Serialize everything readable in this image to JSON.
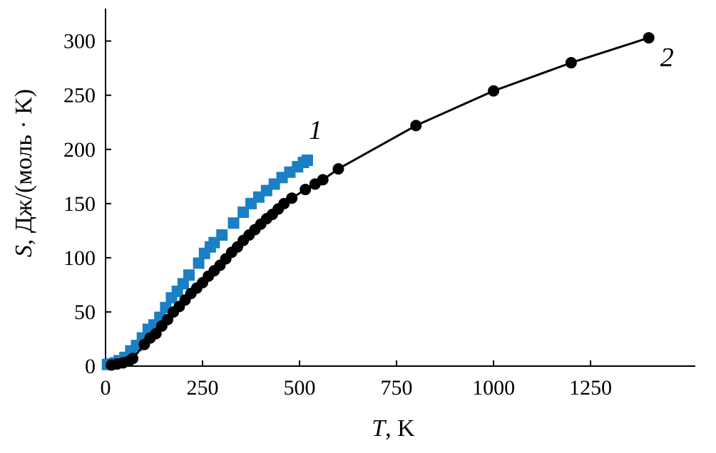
{
  "chart_data": {
    "type": "scatter",
    "title": "",
    "xlabel": {
      "symbol": "T",
      "rest": ", K"
    },
    "ylabel": {
      "symbol": "S",
      "rest": ", Дж/(моль · K)"
    },
    "xlim": [
      0,
      1520
    ],
    "ylim": [
      0,
      330
    ],
    "x_ticks": [
      0,
      250,
      500,
      750,
      1000,
      1250
    ],
    "y_ticks": [
      0,
      50,
      100,
      150,
      200,
      250,
      300
    ],
    "x_tick_labels": [
      "0",
      "250",
      "500",
      "750",
      "1000",
      "1250"
    ],
    "y_tick_labels": [
      "0",
      "50",
      "100",
      "150",
      "200",
      "250",
      "300"
    ],
    "grid": false,
    "legend": "none",
    "series": [
      {
        "label": "1",
        "marker": "square",
        "color": "#1a7fc4",
        "line": false,
        "x": [
          5,
          15,
          25,
          35,
          50,
          65,
          80,
          95,
          110,
          125,
          140,
          155,
          170,
          185,
          200,
          215,
          240,
          255,
          270,
          280,
          300,
          330,
          355,
          375,
          395,
          415,
          435,
          455,
          475,
          495,
          510,
          520
        ],
        "y": [
          1.5,
          2,
          3,
          5,
          8,
          14,
          19,
          26,
          34,
          38,
          45,
          54,
          63,
          69,
          76,
          84,
          95,
          104,
          110,
          114,
          121,
          132,
          142,
          150,
          156,
          162,
          168,
          174,
          179,
          184,
          188,
          190
        ]
      },
      {
        "label": "2",
        "marker": "circle",
        "color": "#000000",
        "line": true,
        "x": [
          15,
          30,
          45,
          60,
          70,
          100,
          115,
          130,
          145,
          160,
          175,
          190,
          205,
          220,
          235,
          250,
          265,
          280,
          295,
          310,
          325,
          340,
          355,
          370,
          385,
          400,
          415,
          430,
          445,
          460,
          480,
          515,
          540,
          560,
          600,
          800,
          1000,
          1200,
          1400
        ],
        "y": [
          1,
          2,
          3,
          4.5,
          7,
          20,
          26,
          30,
          37,
          43,
          50,
          55,
          61,
          67,
          72,
          77,
          83,
          88,
          93,
          99,
          105,
          110,
          116,
          121,
          126,
          131,
          136,
          140,
          145,
          150,
          155,
          163,
          168,
          172,
          182,
          222,
          254,
          280,
          303
        ]
      }
    ]
  }
}
